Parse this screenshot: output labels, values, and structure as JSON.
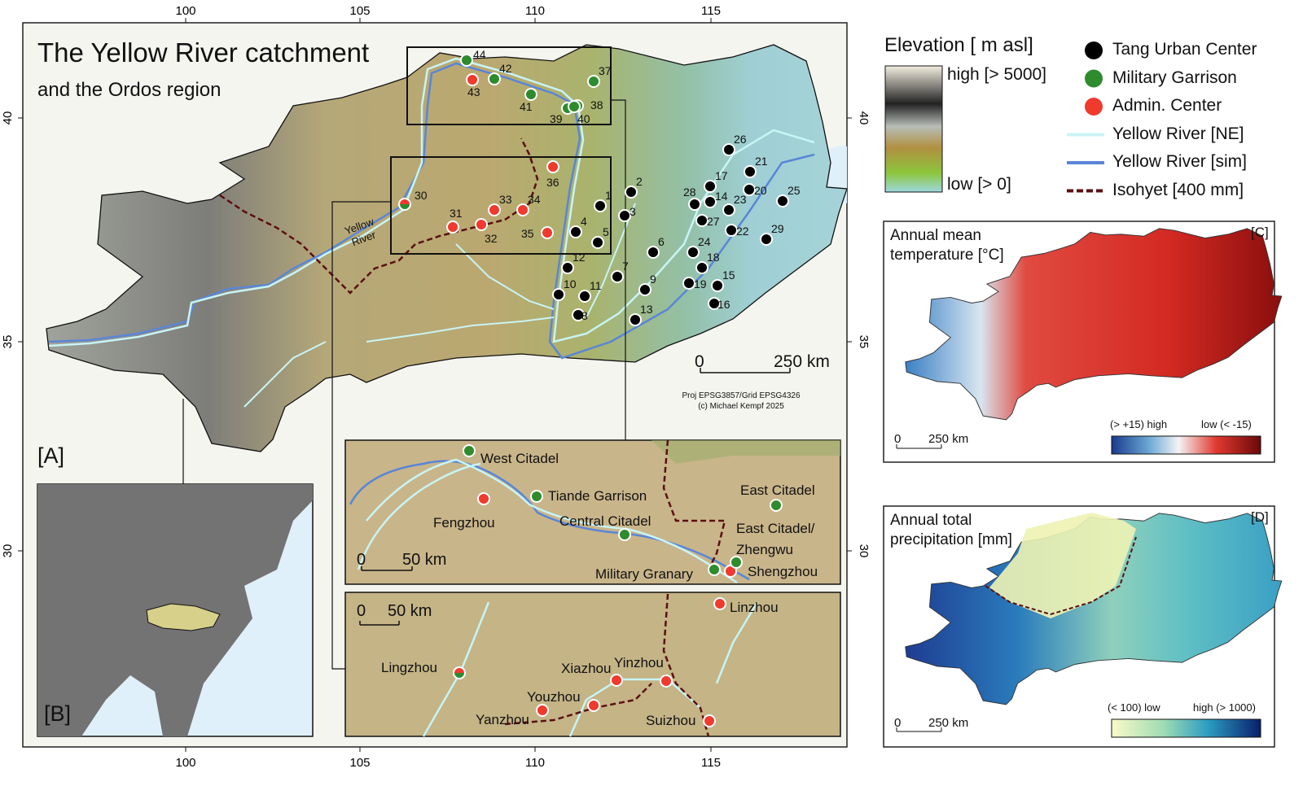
{
  "title": "The Yellow River catchment",
  "subtitle": "and the Ordos region",
  "panel_labels": {
    "a": "[A]",
    "b": "[B]",
    "c": "[C]",
    "d": "[D]"
  },
  "axes": {
    "lon_ticks": [
      "100",
      "105",
      "110",
      "115"
    ],
    "lat_ticks": [
      "40",
      "35",
      "30"
    ]
  },
  "river_label": "Yellow River",
  "scale_bar": {
    "zero": "0",
    "main": "250 km",
    "inset": "50 km"
  },
  "credits": {
    "proj": "Proj EPSG3857/Grid EPSG4326",
    "author": "(c) Michael Kempf 2025"
  },
  "legend": {
    "elevation_title": "Elevation [ m asl]",
    "high": "high [> 5000]",
    "low": "low [> 0]",
    "items": [
      {
        "label": "Tang Urban Center",
        "color": "#000000",
        "shape": "dot"
      },
      {
        "label": "Military Garrison",
        "color": "#2e8b2e",
        "shape": "dot"
      },
      {
        "label": "Admin. Center",
        "color": "#f03a2e",
        "shape": "dot"
      },
      {
        "label": "Yellow River [NE]",
        "color": "#c8f4f4",
        "shape": "line"
      },
      {
        "label": "Yellow River [sim]",
        "color": "#5a86d6",
        "shape": "line"
      },
      {
        "label": "Isohyet [400 mm]",
        "color": "#5a1010",
        "shape": "dash"
      }
    ]
  },
  "colors": {
    "urban": "#000000",
    "garrison": "#2e8b2e",
    "admin": "#f03a2e",
    "river_ne": "#c8f4f4",
    "river_sim": "#5a86d6",
    "isohyet": "#5a1010"
  },
  "sites": {
    "urban": [
      "1",
      "2",
      "3",
      "4",
      "5",
      "6",
      "7",
      "8",
      "9",
      "10",
      "11",
      "12",
      "13",
      "14",
      "15",
      "16",
      "17",
      "18",
      "19",
      "20",
      "21",
      "22",
      "23",
      "24",
      "25",
      "26",
      "27",
      "28",
      "29"
    ],
    "admin": [
      "31",
      "32",
      "33",
      "34",
      "35",
      "36",
      "43"
    ],
    "garrison": [
      "37",
      "38",
      "39",
      "40",
      "41",
      "42",
      "44"
    ],
    "mixed": [
      "30"
    ]
  },
  "inset_north": {
    "sites": [
      {
        "name": "West Citadel",
        "type": "garrison"
      },
      {
        "name": "Fengzhou",
        "type": "admin"
      },
      {
        "name": "Tiande Garrison",
        "type": "garrison"
      },
      {
        "name": "Central Citadel",
        "type": "garrison"
      },
      {
        "name": "East Citadel",
        "type": "garrison"
      },
      {
        "name": "East Citadel/",
        "type": "label"
      },
      {
        "name": "Zhengwu",
        "type": "admin"
      },
      {
        "name": "Military Granary",
        "type": "garrison"
      },
      {
        "name": "Shengzhou",
        "type": "garrison"
      }
    ]
  },
  "inset_south": {
    "sites": [
      {
        "name": "Linzhou",
        "type": "admin"
      },
      {
        "name": "Lingzhou",
        "type": "mixed"
      },
      {
        "name": "Xiazhou",
        "type": "admin"
      },
      {
        "name": "Yinzhou",
        "type": "admin"
      },
      {
        "name": "Youzhou",
        "type": "admin"
      },
      {
        "name": "Yanzhou",
        "type": "admin"
      },
      {
        "name": "Suizhou",
        "type": "admin"
      }
    ]
  },
  "panel_c": {
    "title_line1": "Annual mean",
    "title_line2": "temperature [°C]",
    "high": "(> +15) high",
    "low": "low (< -15)",
    "scale": "250 km",
    "zero": "0"
  },
  "panel_d": {
    "title_line1": "Annual total",
    "title_line2": "precipitation [mm]",
    "low": "(< 100) low",
    "high": "high (> 1000)",
    "scale": "250 km",
    "zero": "0"
  }
}
